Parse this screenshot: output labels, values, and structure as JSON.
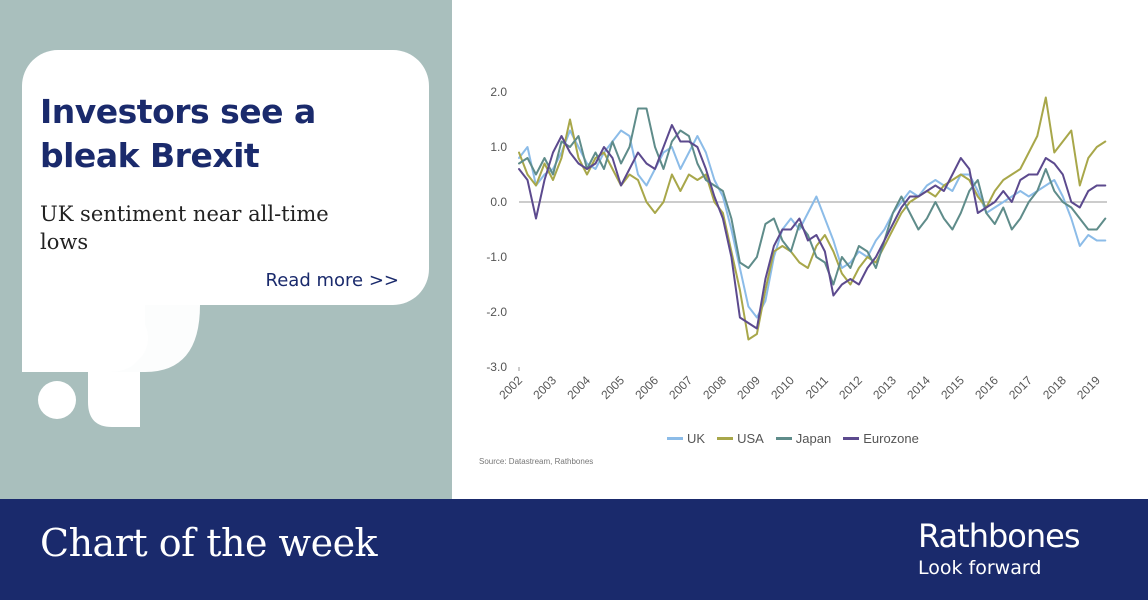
{
  "card": {
    "headline": "Investors see a bleak Brexit",
    "subline": "UK sentiment near all-time lows",
    "read_more": "Read more >>"
  },
  "footer": {
    "title": "Chart of the week",
    "brand": "Rathbones",
    "tagline": "Look forward"
  },
  "source": "Source: Datastream, Rathbones",
  "colors": {
    "navy": "#1a2a6c",
    "sage": "#a9bfbd",
    "UK": "#8cbce8",
    "USA": "#a8a74a",
    "Japan": "#5f8c8a",
    "Eurozone": "#5c4a8e"
  },
  "chart_data": {
    "type": "line",
    "title": "",
    "xlabel": "",
    "ylabel": "",
    "ylim": [
      -3.0,
      2.0
    ],
    "xlim": [
      2002,
      2019.3
    ],
    "y_ticks": [
      "2.0",
      "1.0",
      "0.0",
      "-1.0",
      "-2.0",
      "-3.0"
    ],
    "x_ticks": [
      "2002",
      "2003",
      "2004",
      "2005",
      "2006",
      "2007",
      "2008",
      "2009",
      "2010",
      "2011",
      "2012",
      "2013",
      "2014",
      "2015",
      "2016",
      "2017",
      "2018",
      "2019"
    ],
    "grid": false,
    "legend": "bottom",
    "series": [
      {
        "name": "UK",
        "color": "#8cbce8",
        "points": [
          [
            2002.0,
            0.8
          ],
          [
            2002.25,
            1.0
          ],
          [
            2002.5,
            0.3
          ],
          [
            2002.75,
            0.5
          ],
          [
            2003.0,
            0.6
          ],
          [
            2003.25,
            0.9
          ],
          [
            2003.5,
            1.3
          ],
          [
            2003.75,
            1.0
          ],
          [
            2004.0,
            0.7
          ],
          [
            2004.25,
            0.6
          ],
          [
            2004.5,
            0.9
          ],
          [
            2004.75,
            1.1
          ],
          [
            2005.0,
            1.3
          ],
          [
            2005.25,
            1.2
          ],
          [
            2005.5,
            0.5
          ],
          [
            2005.75,
            0.3
          ],
          [
            2006.0,
            0.6
          ],
          [
            2006.25,
            0.9
          ],
          [
            2006.5,
            1.0
          ],
          [
            2006.75,
            0.6
          ],
          [
            2007.0,
            0.9
          ],
          [
            2007.25,
            1.2
          ],
          [
            2007.5,
            0.9
          ],
          [
            2007.75,
            0.4
          ],
          [
            2008.0,
            0.1
          ],
          [
            2008.25,
            -0.5
          ],
          [
            2008.5,
            -1.2
          ],
          [
            2008.75,
            -1.9
          ],
          [
            2009.0,
            -2.1
          ],
          [
            2009.25,
            -1.8
          ],
          [
            2009.5,
            -1.0
          ],
          [
            2009.75,
            -0.5
          ],
          [
            2010.0,
            -0.3
          ],
          [
            2010.25,
            -0.5
          ],
          [
            2010.5,
            -0.2
          ],
          [
            2010.75,
            0.1
          ],
          [
            2011.0,
            -0.3
          ],
          [
            2011.25,
            -0.7
          ],
          [
            2011.5,
            -1.2
          ],
          [
            2011.75,
            -1.1
          ],
          [
            2012.0,
            -0.9
          ],
          [
            2012.25,
            -1.0
          ],
          [
            2012.5,
            -0.7
          ],
          [
            2012.75,
            -0.5
          ],
          [
            2013.0,
            -0.2
          ],
          [
            2013.25,
            0.0
          ],
          [
            2013.5,
            0.2
          ],
          [
            2013.75,
            0.1
          ],
          [
            2014.0,
            0.3
          ],
          [
            2014.25,
            0.4
          ],
          [
            2014.5,
            0.3
          ],
          [
            2014.75,
            0.2
          ],
          [
            2015.0,
            0.5
          ],
          [
            2015.25,
            0.5
          ],
          [
            2015.5,
            0.2
          ],
          [
            2015.75,
            -0.2
          ],
          [
            2016.0,
            -0.1
          ],
          [
            2016.25,
            0.0
          ],
          [
            2016.5,
            0.1
          ],
          [
            2016.75,
            0.2
          ],
          [
            2017.0,
            0.1
          ],
          [
            2017.25,
            0.2
          ],
          [
            2017.5,
            0.3
          ],
          [
            2017.75,
            0.4
          ],
          [
            2018.0,
            0.1
          ],
          [
            2018.25,
            -0.3
          ],
          [
            2018.5,
            -0.8
          ],
          [
            2018.75,
            -0.6
          ],
          [
            2019.0,
            -0.7
          ],
          [
            2019.25,
            -0.7
          ]
        ]
      },
      {
        "name": "USA",
        "color": "#a8a74a",
        "points": [
          [
            2002.0,
            0.9
          ],
          [
            2002.25,
            0.5
          ],
          [
            2002.5,
            0.3
          ],
          [
            2002.75,
            0.7
          ],
          [
            2003.0,
            0.4
          ],
          [
            2003.25,
            0.8
          ],
          [
            2003.5,
            1.5
          ],
          [
            2003.75,
            0.8
          ],
          [
            2004.0,
            0.5
          ],
          [
            2004.25,
            0.8
          ],
          [
            2004.5,
            0.9
          ],
          [
            2004.75,
            0.6
          ],
          [
            2005.0,
            0.3
          ],
          [
            2005.25,
            0.5
          ],
          [
            2005.5,
            0.4
          ],
          [
            2005.75,
            0.0
          ],
          [
            2006.0,
            -0.2
          ],
          [
            2006.25,
            0.0
          ],
          [
            2006.5,
            0.5
          ],
          [
            2006.75,
            0.2
          ],
          [
            2007.0,
            0.5
          ],
          [
            2007.25,
            0.4
          ],
          [
            2007.5,
            0.5
          ],
          [
            2007.75,
            0.0
          ],
          [
            2008.0,
            -0.2
          ],
          [
            2008.25,
            -0.9
          ],
          [
            2008.5,
            -1.6
          ],
          [
            2008.75,
            -2.5
          ],
          [
            2009.0,
            -2.4
          ],
          [
            2009.25,
            -1.6
          ],
          [
            2009.5,
            -0.9
          ],
          [
            2009.75,
            -0.8
          ],
          [
            2010.0,
            -0.9
          ],
          [
            2010.25,
            -1.1
          ],
          [
            2010.5,
            -1.2
          ],
          [
            2010.75,
            -0.8
          ],
          [
            2011.0,
            -0.6
          ],
          [
            2011.25,
            -0.9
          ],
          [
            2011.5,
            -1.3
          ],
          [
            2011.75,
            -1.5
          ],
          [
            2012.0,
            -1.2
          ],
          [
            2012.25,
            -1.0
          ],
          [
            2012.5,
            -1.1
          ],
          [
            2012.75,
            -0.8
          ],
          [
            2013.0,
            -0.5
          ],
          [
            2013.25,
            -0.2
          ],
          [
            2013.5,
            0.0
          ],
          [
            2013.75,
            0.1
          ],
          [
            2014.0,
            0.2
          ],
          [
            2014.25,
            0.1
          ],
          [
            2014.5,
            0.3
          ],
          [
            2014.75,
            0.4
          ],
          [
            2015.0,
            0.5
          ],
          [
            2015.25,
            0.4
          ],
          [
            2015.5,
            0.1
          ],
          [
            2015.75,
            -0.1
          ],
          [
            2016.0,
            0.2
          ],
          [
            2016.25,
            0.4
          ],
          [
            2016.5,
            0.5
          ],
          [
            2016.75,
            0.6
          ],
          [
            2017.0,
            0.9
          ],
          [
            2017.25,
            1.2
          ],
          [
            2017.5,
            1.9
          ],
          [
            2017.75,
            0.9
          ],
          [
            2018.0,
            1.1
          ],
          [
            2018.25,
            1.3
          ],
          [
            2018.5,
            0.3
          ],
          [
            2018.75,
            0.8
          ],
          [
            2019.0,
            1.0
          ],
          [
            2019.25,
            1.1
          ]
        ]
      },
      {
        "name": "Japan",
        "color": "#5f8c8a",
        "points": [
          [
            2002.0,
            0.7
          ],
          [
            2002.25,
            0.8
          ],
          [
            2002.5,
            0.5
          ],
          [
            2002.75,
            0.8
          ],
          [
            2003.0,
            0.5
          ],
          [
            2003.25,
            1.1
          ],
          [
            2003.5,
            1.0
          ],
          [
            2003.75,
            1.2
          ],
          [
            2004.0,
            0.6
          ],
          [
            2004.25,
            0.9
          ],
          [
            2004.5,
            0.6
          ],
          [
            2004.75,
            1.1
          ],
          [
            2005.0,
            0.7
          ],
          [
            2005.25,
            1.0
          ],
          [
            2005.5,
            1.7
          ],
          [
            2005.75,
            1.7
          ],
          [
            2006.0,
            1.0
          ],
          [
            2006.25,
            0.6
          ],
          [
            2006.5,
            1.1
          ],
          [
            2006.75,
            1.3
          ],
          [
            2007.0,
            1.2
          ],
          [
            2007.25,
            0.7
          ],
          [
            2007.5,
            0.4
          ],
          [
            2007.75,
            0.3
          ],
          [
            2008.0,
            0.2
          ],
          [
            2008.25,
            -0.3
          ],
          [
            2008.5,
            -1.1
          ],
          [
            2008.75,
            -1.2
          ],
          [
            2009.0,
            -1.0
          ],
          [
            2009.25,
            -0.4
          ],
          [
            2009.5,
            -0.3
          ],
          [
            2009.75,
            -0.7
          ],
          [
            2010.0,
            -0.9
          ],
          [
            2010.25,
            -0.4
          ],
          [
            2010.5,
            -0.6
          ],
          [
            2010.75,
            -1.0
          ],
          [
            2011.0,
            -1.1
          ],
          [
            2011.25,
            -1.5
          ],
          [
            2011.5,
            -1.0
          ],
          [
            2011.75,
            -1.2
          ],
          [
            2012.0,
            -0.8
          ],
          [
            2012.25,
            -0.9
          ],
          [
            2012.5,
            -1.2
          ],
          [
            2012.75,
            -0.7
          ],
          [
            2013.0,
            -0.2
          ],
          [
            2013.25,
            0.1
          ],
          [
            2013.5,
            -0.2
          ],
          [
            2013.75,
            -0.5
          ],
          [
            2014.0,
            -0.3
          ],
          [
            2014.25,
            0.0
          ],
          [
            2014.5,
            -0.3
          ],
          [
            2014.75,
            -0.5
          ],
          [
            2015.0,
            -0.2
          ],
          [
            2015.25,
            0.2
          ],
          [
            2015.5,
            0.4
          ],
          [
            2015.75,
            -0.2
          ],
          [
            2016.0,
            -0.4
          ],
          [
            2016.25,
            -0.1
          ],
          [
            2016.5,
            -0.5
          ],
          [
            2016.75,
            -0.3
          ],
          [
            2017.0,
            0.0
          ],
          [
            2017.25,
            0.2
          ],
          [
            2017.5,
            0.6
          ],
          [
            2017.75,
            0.2
          ],
          [
            2018.0,
            0.0
          ],
          [
            2018.25,
            -0.1
          ],
          [
            2018.5,
            -0.3
          ],
          [
            2018.75,
            -0.5
          ],
          [
            2019.0,
            -0.5
          ],
          [
            2019.25,
            -0.3
          ]
        ]
      },
      {
        "name": "Eurozone",
        "color": "#5c4a8e",
        "points": [
          [
            2002.0,
            0.6
          ],
          [
            2002.25,
            0.4
          ],
          [
            2002.5,
            -0.3
          ],
          [
            2002.75,
            0.4
          ],
          [
            2003.0,
            0.9
          ],
          [
            2003.25,
            1.2
          ],
          [
            2003.5,
            0.9
          ],
          [
            2003.75,
            0.7
          ],
          [
            2004.0,
            0.6
          ],
          [
            2004.25,
            0.7
          ],
          [
            2004.5,
            1.0
          ],
          [
            2004.75,
            0.8
          ],
          [
            2005.0,
            0.3
          ],
          [
            2005.25,
            0.6
          ],
          [
            2005.5,
            0.9
          ],
          [
            2005.75,
            0.7
          ],
          [
            2006.0,
            0.6
          ],
          [
            2006.25,
            1.0
          ],
          [
            2006.5,
            1.4
          ],
          [
            2006.75,
            1.1
          ],
          [
            2007.0,
            1.1
          ],
          [
            2007.25,
            1.0
          ],
          [
            2007.5,
            0.6
          ],
          [
            2007.75,
            0.1
          ],
          [
            2008.0,
            -0.3
          ],
          [
            2008.25,
            -1.0
          ],
          [
            2008.5,
            -2.1
          ],
          [
            2008.75,
            -2.2
          ],
          [
            2009.0,
            -2.3
          ],
          [
            2009.25,
            -1.4
          ],
          [
            2009.5,
            -0.8
          ],
          [
            2009.75,
            -0.5
          ],
          [
            2010.0,
            -0.5
          ],
          [
            2010.25,
            -0.3
          ],
          [
            2010.5,
            -0.7
          ],
          [
            2010.75,
            -0.6
          ],
          [
            2011.0,
            -0.9
          ],
          [
            2011.25,
            -1.7
          ],
          [
            2011.5,
            -1.5
          ],
          [
            2011.75,
            -1.4
          ],
          [
            2012.0,
            -1.5
          ],
          [
            2012.25,
            -1.2
          ],
          [
            2012.5,
            -1.0
          ],
          [
            2012.75,
            -0.7
          ],
          [
            2013.0,
            -0.4
          ],
          [
            2013.25,
            -0.1
          ],
          [
            2013.5,
            0.1
          ],
          [
            2013.75,
            0.1
          ],
          [
            2014.0,
            0.2
          ],
          [
            2014.25,
            0.3
          ],
          [
            2014.5,
            0.2
          ],
          [
            2014.75,
            0.5
          ],
          [
            2015.0,
            0.8
          ],
          [
            2015.25,
            0.6
          ],
          [
            2015.5,
            -0.2
          ],
          [
            2015.75,
            -0.1
          ],
          [
            2016.0,
            0.0
          ],
          [
            2016.25,
            0.2
          ],
          [
            2016.5,
            0.0
          ],
          [
            2016.75,
            0.4
          ],
          [
            2017.0,
            0.5
          ],
          [
            2017.25,
            0.5
          ],
          [
            2017.5,
            0.8
          ],
          [
            2017.75,
            0.7
          ],
          [
            2018.0,
            0.5
          ],
          [
            2018.25,
            0.0
          ],
          [
            2018.5,
            -0.1
          ],
          [
            2018.75,
            0.2
          ],
          [
            2019.0,
            0.3
          ],
          [
            2019.25,
            0.3
          ]
        ]
      }
    ]
  }
}
